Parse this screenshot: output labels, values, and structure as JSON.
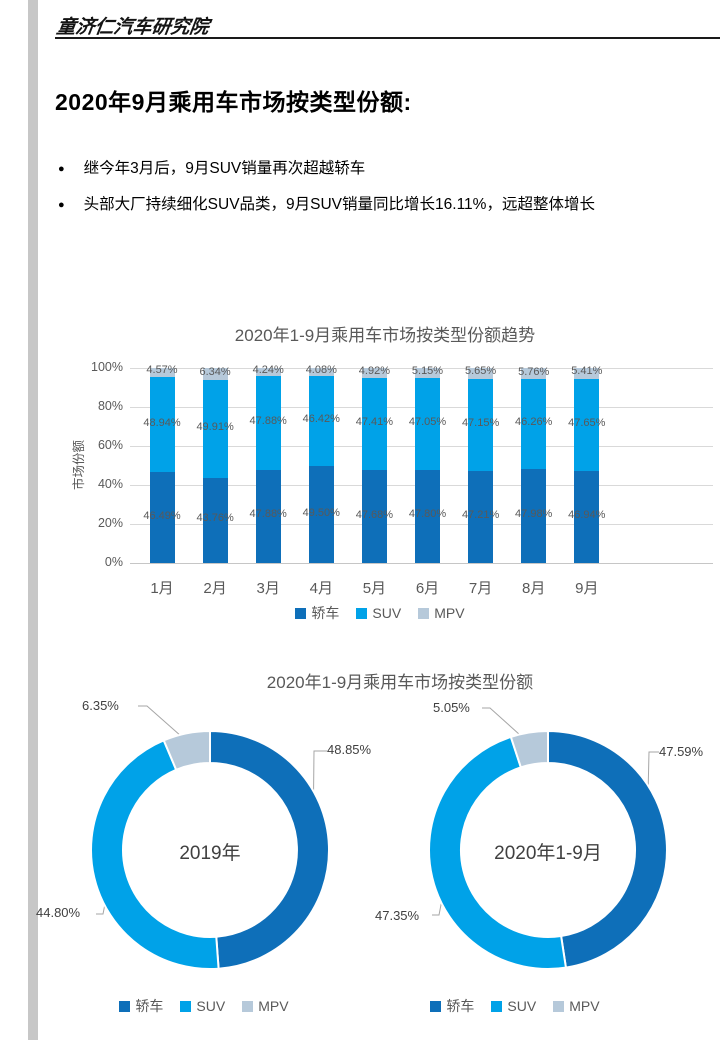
{
  "header": {
    "brand": "童济仁汽车研究院"
  },
  "page_title": "2020年9月乘用车市场按类型份额:",
  "bullets": [
    "继今年3月后，9月SUV销量再次超越轿车",
    "头部大厂持续细化SUV品类，9月SUV销量同比增长16.11%，远超整体增长"
  ],
  "colors": {
    "sedan": "#0e6fb9",
    "suv": "#00a2e8",
    "mpv": "#b6c9da",
    "grid": "#d9d9d9",
    "axis_line": "#c6c6c6",
    "text_gray": "#595959",
    "label_dark": "#404040",
    "leader_line": "#a6a6a6",
    "side_strip": "#c7c7c7"
  },
  "chart_data": [
    {
      "type": "bar",
      "stacked": true,
      "title": "2020年1-9月乘用车市场按类型份额趋势",
      "ylabel": "市场份额",
      "xlabel": "",
      "ylim": [
        0,
        100
      ],
      "grid": true,
      "legend_position": "bottom",
      "ytick_labels": [
        "0%",
        "20%",
        "40%",
        "60%",
        "80%",
        "100%"
      ],
      "ytick_values": [
        0,
        20,
        40,
        60,
        80,
        100
      ],
      "categories": [
        "1月",
        "2月",
        "3月",
        "4月",
        "5月",
        "6月",
        "7月",
        "8月",
        "9月"
      ],
      "series": [
        {
          "name": "轿车",
          "color_key": "sedan",
          "values": [
            46.49,
            43.76,
            47.88,
            49.5,
            47.68,
            47.8,
            47.21,
            47.98,
            46.94
          ]
        },
        {
          "name": "SUV",
          "color_key": "suv",
          "values": [
            48.94,
            49.91,
            47.88,
            46.42,
            47.41,
            47.05,
            47.15,
            46.26,
            47.65
          ]
        },
        {
          "name": "MPV",
          "color_key": "mpv",
          "values": [
            4.57,
            6.34,
            4.24,
            4.08,
            4.92,
            5.15,
            5.65,
            5.76,
            5.41
          ]
        }
      ],
      "data_labels": true
    },
    {
      "type": "pie",
      "subtype": "donut",
      "title": "2020年1-9月乘用车市场按类型份额",
      "legend_position": "bottom",
      "donuts": [
        {
          "center_label": "2019年",
          "slices": [
            {
              "name": "轿车",
              "color_key": "sedan",
              "value": 48.85
            },
            {
              "name": "SUV",
              "color_key": "suv",
              "value": 44.8
            },
            {
              "name": "MPV",
              "color_key": "mpv",
              "value": 6.35
            }
          ]
        },
        {
          "center_label": "2020年1-9月",
          "slices": [
            {
              "name": "轿车",
              "color_key": "sedan",
              "value": 47.59
            },
            {
              "name": "SUV",
              "color_key": "suv",
              "value": 47.35
            },
            {
              "name": "MPV",
              "color_key": "mpv",
              "value": 5.05
            }
          ]
        }
      ]
    }
  ]
}
